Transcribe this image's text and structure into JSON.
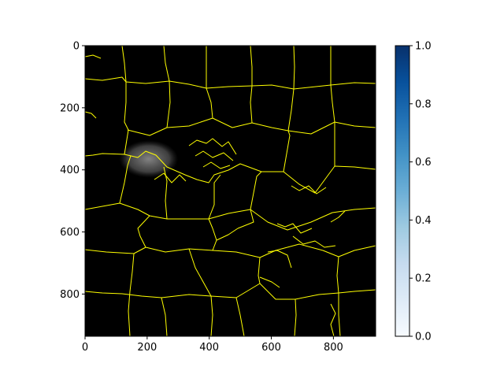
{
  "chart_data": {
    "type": "heatmap",
    "title": "",
    "xlabel": "",
    "ylabel": "",
    "xlim": [
      0,
      936
    ],
    "ylim": [
      936,
      0
    ],
    "x_ticks": [
      0,
      200,
      400,
      600,
      800
    ],
    "y_ticks": [
      0,
      200,
      400,
      600,
      800
    ],
    "x_tick_labels": [
      "0",
      "200",
      "400",
      "600",
      "800"
    ],
    "y_tick_labels": [
      "0",
      "200",
      "400",
      "600",
      "800"
    ],
    "background_color": "#000000",
    "overlay": {
      "description_type": "cell-boundary contours",
      "color": "#ffff00",
      "highlight_region": {
        "color": "#888888",
        "center": [
          205,
          365
        ],
        "extent": [
          95,
          60
        ]
      }
    },
    "colorbar": {
      "cmap": "Blues",
      "range": [
        0,
        1
      ],
      "ticks": [
        0.0,
        0.2,
        0.4,
        0.6,
        0.8,
        1.0
      ],
      "tick_labels": [
        "0.0",
        "0.2",
        "0.4",
        "0.6",
        "0.8",
        "1.0"
      ],
      "color_low": "#f7fbff",
      "color_high": "#08306b"
    },
    "grid": false
  }
}
